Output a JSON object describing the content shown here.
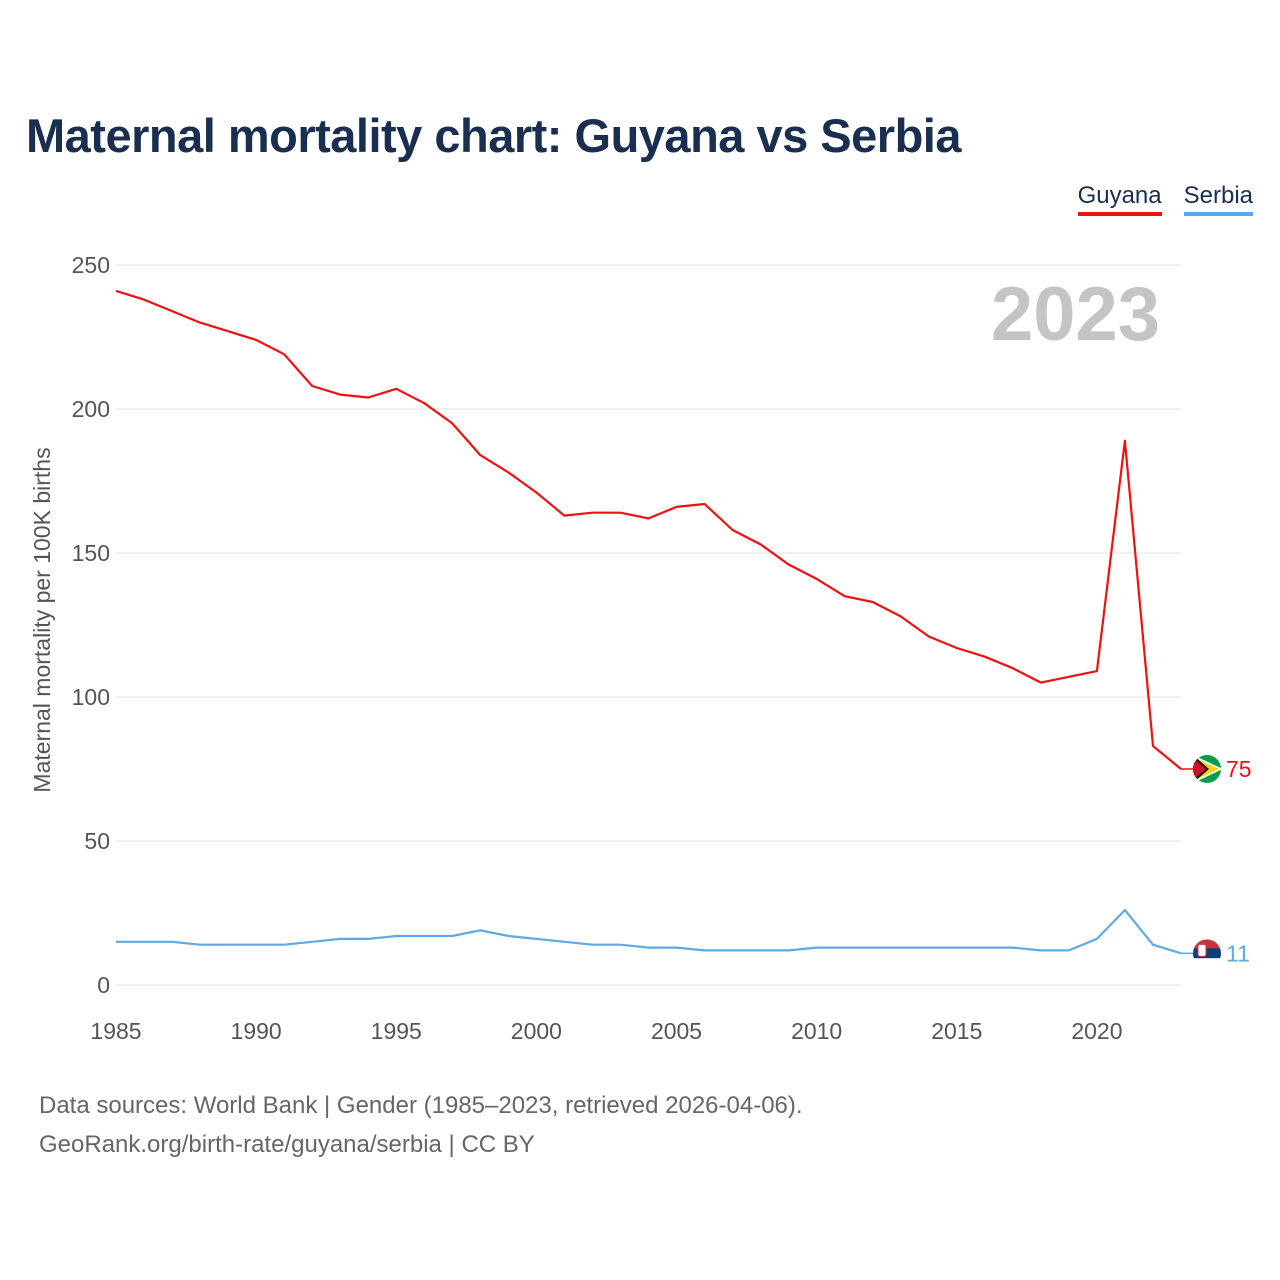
{
  "title": "Maternal mortality chart: Guyana vs Serbia",
  "colors": {
    "guyana": "#ee1111",
    "serbia": "#5fa8e6",
    "grid": "#e6e6e6"
  },
  "footer": {
    "line1": "Data sources: World Bank | Gender (1985–2023, retrieved 2026-04-06).",
    "line2": "GeoRank.org/birth-rate/guyana/serbia | CC BY"
  },
  "chart_data": {
    "type": "line",
    "title": "Maternal mortality chart: Guyana vs Serbia",
    "ylabel": "Maternal mortality per 100K births",
    "xlabel": "",
    "year_label": "2023",
    "xlim": [
      1985,
      2023
    ],
    "ylim": [
      0,
      250
    ],
    "x_ticks": [
      1985,
      1990,
      1995,
      2000,
      2005,
      2010,
      2015,
      2020
    ],
    "y_ticks": [
      0,
      50,
      100,
      150,
      200,
      250
    ],
    "legend_position": "top-right",
    "x": [
      1985,
      1986,
      1987,
      1988,
      1989,
      1990,
      1991,
      1992,
      1993,
      1994,
      1995,
      1996,
      1997,
      1998,
      1999,
      2000,
      2001,
      2002,
      2003,
      2004,
      2005,
      2006,
      2007,
      2008,
      2009,
      2010,
      2011,
      2012,
      2013,
      2014,
      2015,
      2016,
      2017,
      2018,
      2019,
      2020,
      2021,
      2022,
      2023
    ],
    "series": [
      {
        "name": "Guyana",
        "color": "#ee1111",
        "end_label": "75",
        "values": [
          241,
          238,
          234,
          230,
          227,
          224,
          219,
          208,
          205,
          204,
          207,
          202,
          195,
          184,
          178,
          171,
          163,
          164,
          164,
          162,
          166,
          167,
          158,
          153,
          146,
          141,
          135,
          133,
          128,
          121,
          117,
          114,
          110,
          105,
          107,
          109,
          189,
          83,
          75
        ]
      },
      {
        "name": "Serbia",
        "color": "#5fa8e6",
        "end_label": "11",
        "values": [
          15,
          15,
          15,
          14,
          14,
          14,
          14,
          15,
          16,
          16,
          17,
          17,
          17,
          19,
          17,
          16,
          15,
          14,
          14,
          13,
          13,
          12,
          12,
          12,
          12,
          13,
          13,
          13,
          13,
          13,
          13,
          13,
          13,
          12,
          12,
          16,
          26,
          14,
          11
        ]
      }
    ]
  }
}
